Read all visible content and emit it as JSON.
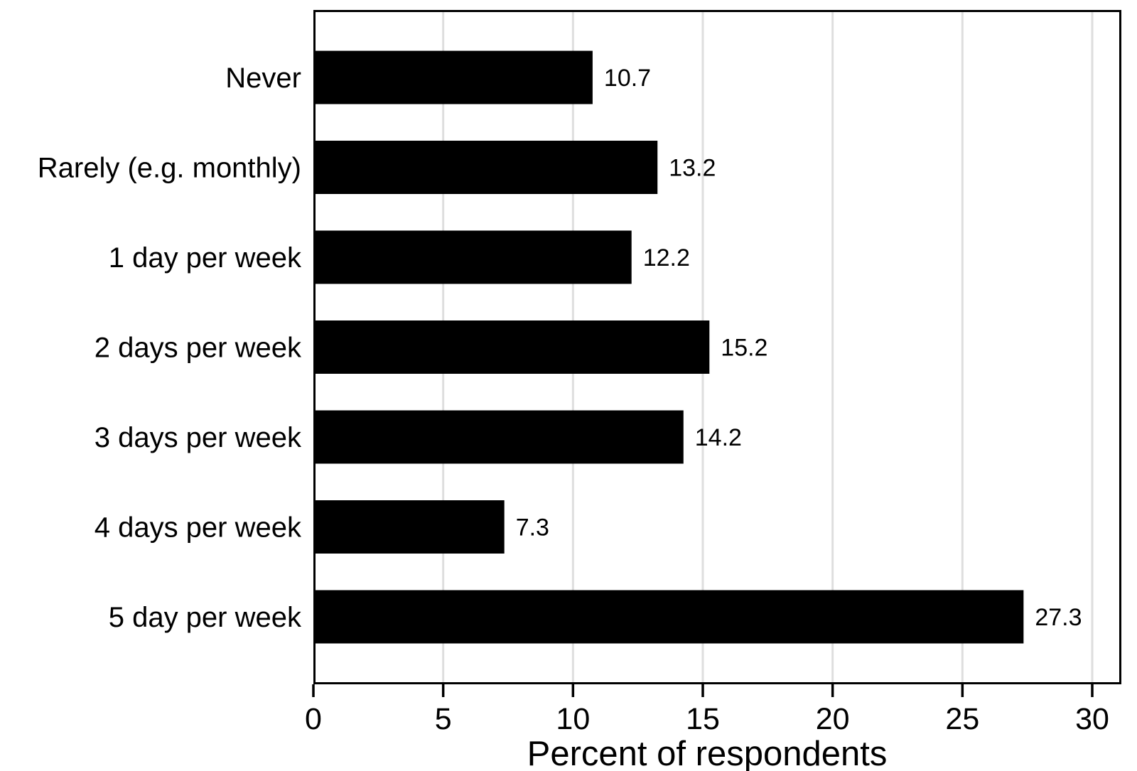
{
  "chart_data": {
    "type": "bar",
    "orientation": "horizontal",
    "title": "",
    "xlabel": "Percent of respondents",
    "ylabel": "",
    "categories": [
      "Never",
      "Rarely (e.g. monthly)",
      "1 day per week",
      "2 days per week",
      "3 days per week",
      "4 days per week",
      "5 day per week"
    ],
    "values": [
      10.7,
      13.2,
      12.2,
      15.2,
      14.2,
      7.3,
      27.3
    ],
    "value_labels": [
      "10.7",
      "13.2",
      "12.2",
      "15.2",
      "14.2",
      "7.3",
      "27.3"
    ],
    "xticks": [
      "0",
      "5",
      "10",
      "15",
      "20",
      "25",
      "30"
    ],
    "xtick_values": [
      0,
      5,
      10,
      15,
      20,
      25,
      30
    ],
    "xlim": [
      0,
      31.1
    ],
    "grid": true,
    "legend": false,
    "colors": {
      "bar": "#000000",
      "gridline": "#dedede",
      "frame": "#000000",
      "background": "#ffffff",
      "text": "#000000"
    }
  }
}
